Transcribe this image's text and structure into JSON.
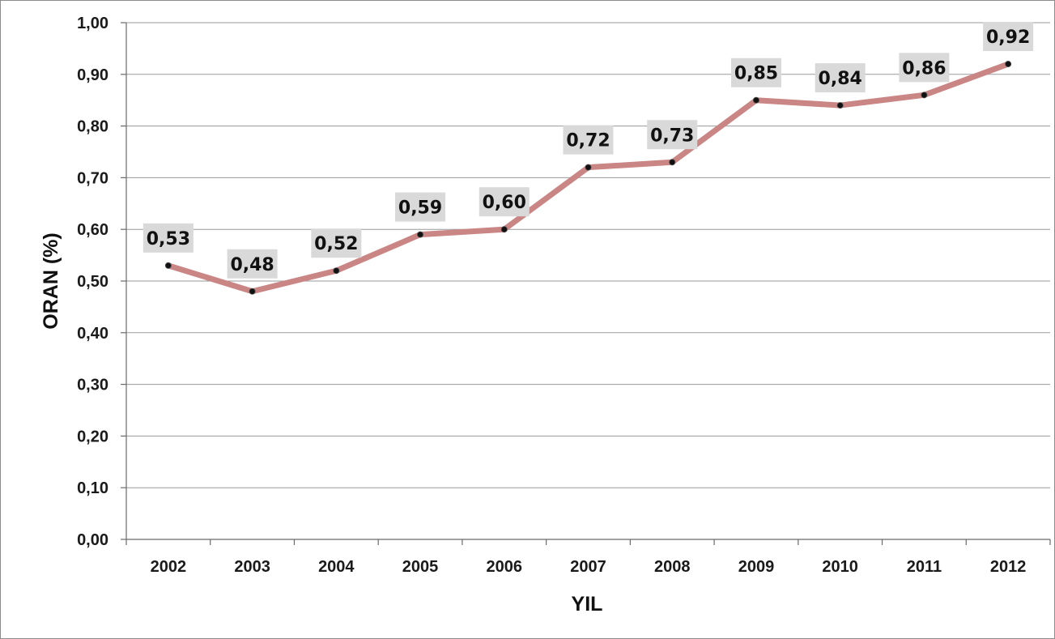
{
  "chart_data": {
    "type": "line",
    "title": "",
    "xlabel": "YIL",
    "ylabel": "ORAN (%)",
    "categories": [
      "2002",
      "2003",
      "2004",
      "2005",
      "2006",
      "2007",
      "2008",
      "2009",
      "2010",
      "2011",
      "2012"
    ],
    "series": [
      {
        "values": [
          0.53,
          0.48,
          0.52,
          0.59,
          0.6,
          0.72,
          0.73,
          0.85,
          0.84,
          0.86,
          0.92
        ],
        "data_labels": [
          "0,53",
          "0,48",
          "0,52",
          "0,59",
          "0,60",
          "0,72",
          "0,73",
          "0,85",
          "0,84",
          "0,86",
          "0,92"
        ],
        "line_color": "#c98684",
        "marker_color": "#111111"
      }
    ],
    "y_ticks": [
      0.0,
      0.1,
      0.2,
      0.3,
      0.4,
      0.5,
      0.6,
      0.7,
      0.8,
      0.9,
      1.0
    ],
    "y_tick_labels": [
      "0,00",
      "0,10",
      "0,20",
      "0,30",
      "0,40",
      "0,50",
      "0,60",
      "0,70",
      "0,80",
      "0,90",
      "1,00"
    ],
    "ylim": [
      0.0,
      1.0
    ],
    "grid": true,
    "legend": "none",
    "data_label_background": "#d9d9d9"
  }
}
